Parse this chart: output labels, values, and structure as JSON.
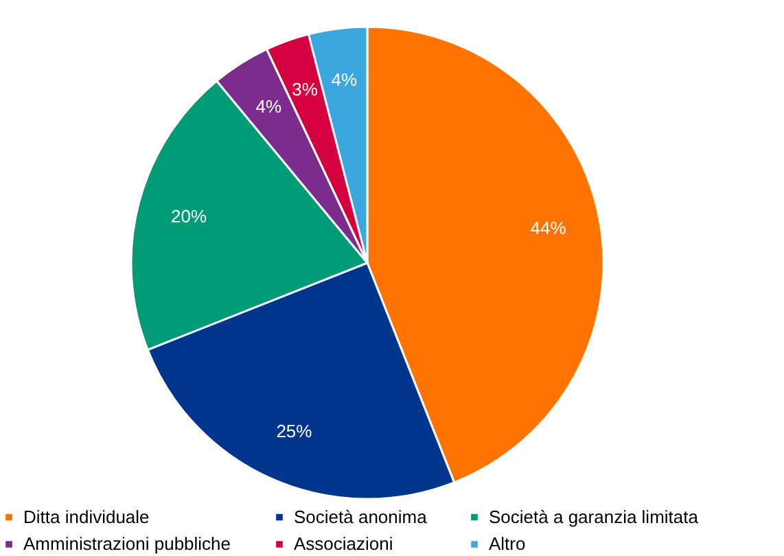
{
  "chart_data": {
    "type": "pie",
    "categories": [
      "Ditta individuale",
      "Società anonima",
      "Società a garanzia limitata",
      "Amministrazioni pubbliche",
      "Associazioni",
      "Altro"
    ],
    "values": [
      44,
      25,
      20,
      4,
      3,
      4
    ],
    "value_labels": [
      "44%",
      "25%",
      "20%",
      "4%",
      "3%",
      "4%"
    ],
    "colors": [
      "#ff7300",
      "#00358e",
      "#009b77",
      "#7b2d8e",
      "#d5003f",
      "#3ba7de"
    ],
    "legend": "bottom"
  }
}
